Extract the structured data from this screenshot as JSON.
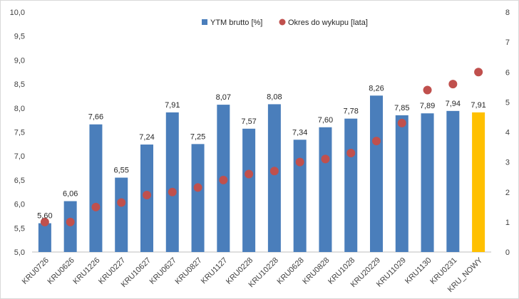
{
  "chart_data": {
    "type": "bar",
    "categories": [
      "KRU0726",
      "KRU0626",
      "KRU1226",
      "KRU0227",
      "KRU10627",
      "KRU0627",
      "KRU0827",
      "KRU1127",
      "KRU0228",
      "KRU10228",
      "KRU0628",
      "KRU0828",
      "KRU1028",
      "KRU20229",
      "KRU11029",
      "KRU1130",
      "KRU0231",
      "KRU_NOWY"
    ],
    "series": [
      {
        "name": "YTM brutto [%]",
        "chart": "bar",
        "axis": "left",
        "values": [
          5.6,
          6.06,
          7.66,
          6.55,
          7.24,
          7.91,
          7.25,
          8.07,
          7.57,
          8.08,
          7.34,
          7.6,
          7.78,
          8.26,
          7.85,
          7.89,
          7.94,
          7.91
        ],
        "labels": [
          "5,60",
          "6,06",
          "7,66",
          "6,55",
          "7,24",
          "7,91",
          "7,25",
          "8,07",
          "7,57",
          "8,08",
          "7,34",
          "7,60",
          "7,78",
          "8,26",
          "7,85",
          "7,89",
          "7,94",
          "7,91"
        ],
        "color": "#4a7ebb",
        "highlight_color": "#ffc000",
        "highlight_index": 17
      },
      {
        "name": "Okres do wykupu [lata]",
        "chart": "scatter",
        "axis": "right",
        "values": [
          1.0,
          1.0,
          1.5,
          1.65,
          1.9,
          2.0,
          2.15,
          2.4,
          2.6,
          2.7,
          3.0,
          3.1,
          3.3,
          3.7,
          4.3,
          5.4,
          5.6,
          6.0
        ],
        "color": "#c0504d"
      }
    ],
    "ylim_left": [
      5.0,
      10.0
    ],
    "ylim_right": [
      0,
      8
    ],
    "yticks_left": [
      "5,0",
      "5,5",
      "6,0",
      "6,5",
      "7,0",
      "7,5",
      "8,0",
      "8,5",
      "9,0",
      "9,5",
      "10,0"
    ],
    "yticks_right": [
      "0",
      "1",
      "2",
      "3",
      "4",
      "5",
      "6",
      "7",
      "8"
    ],
    "legend_position": "top-center",
    "grid": false
  }
}
